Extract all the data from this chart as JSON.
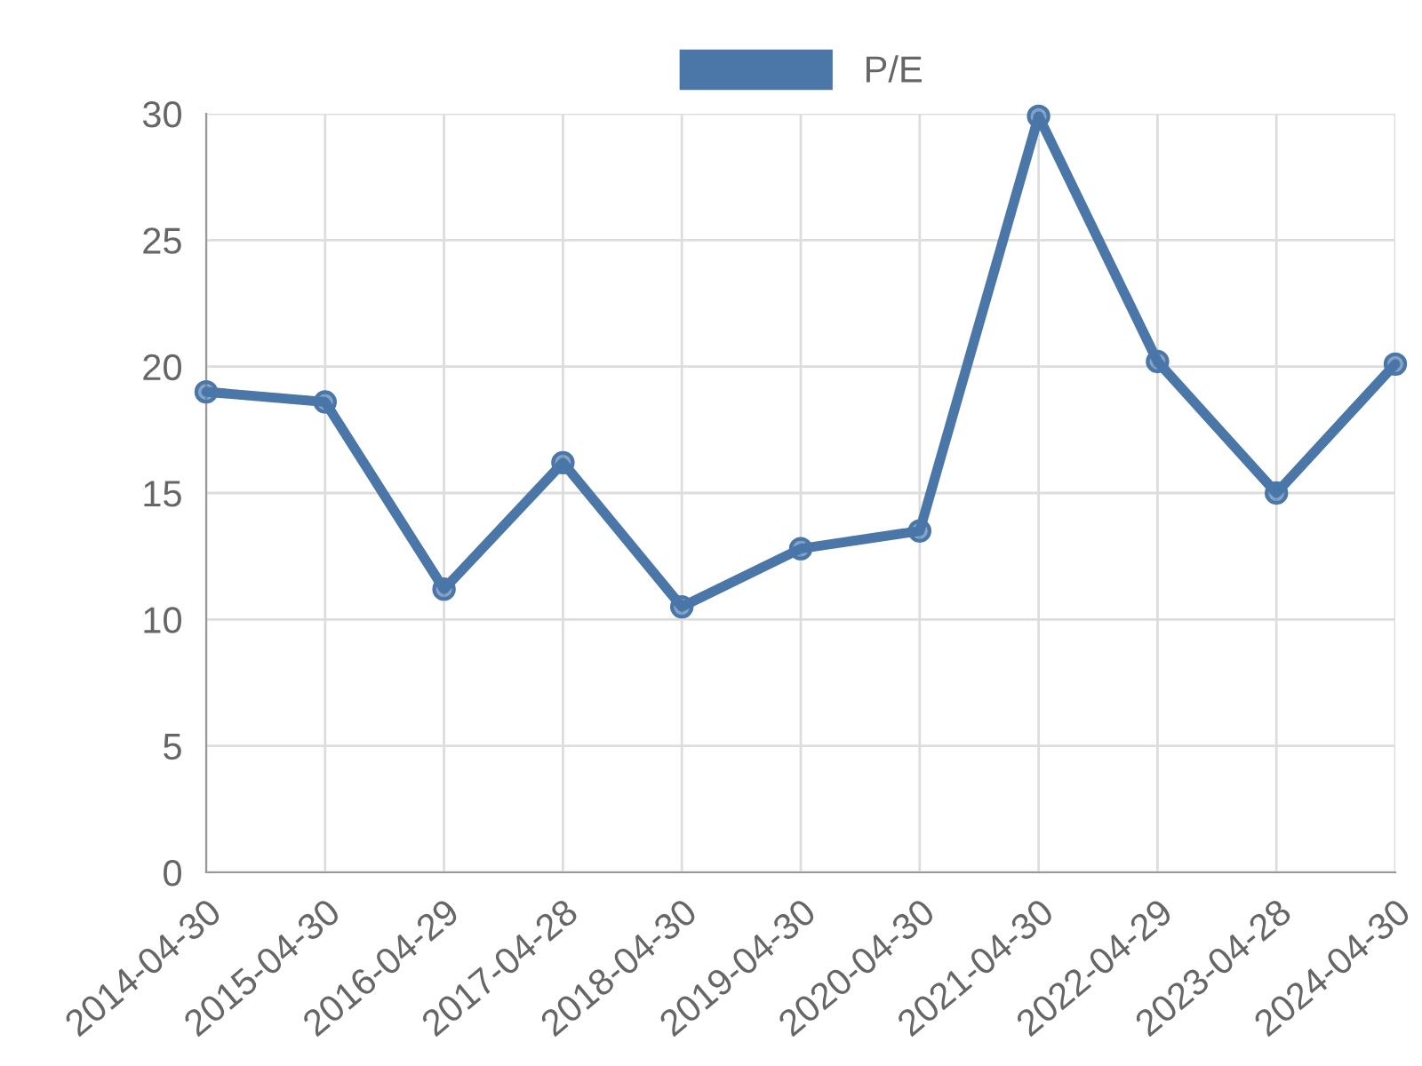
{
  "chart_data": {
    "type": "line",
    "categories": [
      "2014-04-30",
      "2015-04-30",
      "2016-04-29",
      "2017-04-28",
      "2018-04-30",
      "2019-04-30",
      "2020-04-30",
      "2021-04-30",
      "2022-04-29",
      "2023-04-28",
      "2024-04-30"
    ],
    "series": [
      {
        "name": "P/E",
        "color": "#4a76a8",
        "values": [
          19.0,
          18.6,
          11.2,
          16.2,
          10.5,
          12.8,
          13.5,
          29.9,
          20.2,
          15.0,
          20.1
        ]
      }
    ],
    "ylim": [
      0,
      30
    ],
    "yticks": [
      0,
      5,
      10,
      15,
      20,
      25,
      30
    ],
    "grid": true,
    "legend": "top",
    "marker": "circle",
    "line_style": "solid"
  }
}
